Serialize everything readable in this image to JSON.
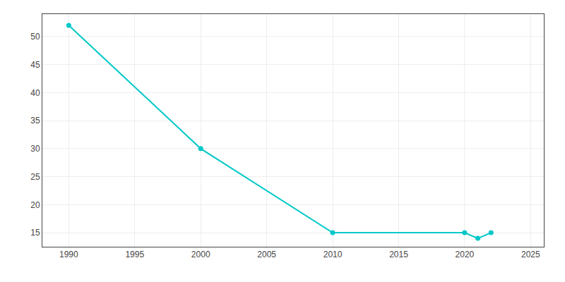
{
  "chart_data": {
    "type": "line",
    "x": [
      1990,
      2000,
      2010,
      2020,
      2021,
      2022
    ],
    "values": [
      52,
      30,
      15,
      15,
      14,
      15
    ],
    "color": "#00c8c8",
    "marker": "circle",
    "xlim": [
      1988,
      2026
    ],
    "ylim": [
      12.5,
      54
    ],
    "xticks": [
      1990,
      1995,
      2000,
      2005,
      2010,
      2015,
      2020,
      2025
    ],
    "yticks": [
      15,
      20,
      25,
      30,
      35,
      40,
      45,
      50
    ],
    "grid": true
  }
}
